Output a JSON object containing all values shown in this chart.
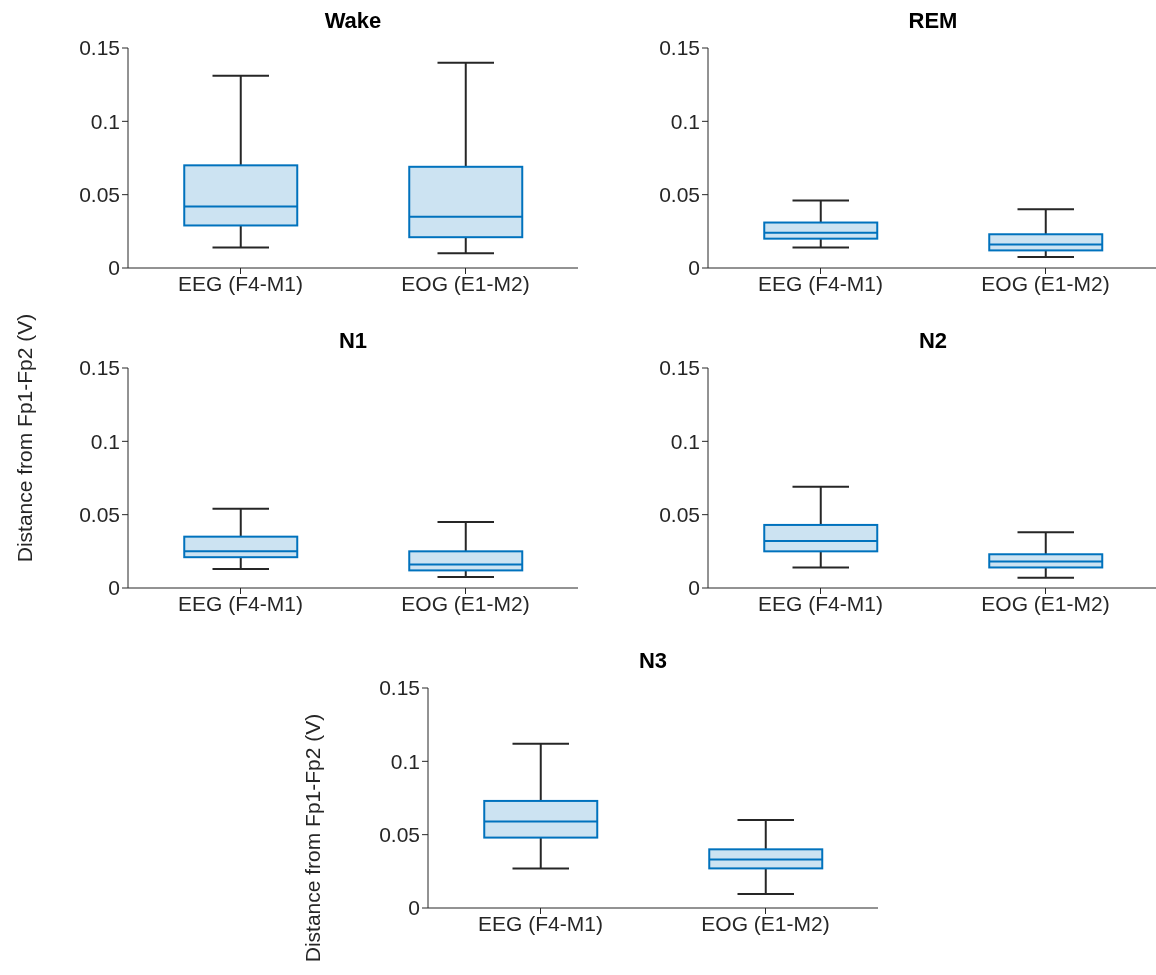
{
  "chart_data": [
    {
      "type": "box",
      "title": "Wake",
      "categories": [
        "EEG (F4-M1)",
        "EOG (E1-M2)"
      ],
      "color": "#0072bd",
      "ylim": [
        0,
        0.15
      ],
      "yticks": [
        0,
        0.05,
        0.1,
        0.15
      ],
      "grid": false,
      "boxes": [
        {
          "low": 0.014,
          "q1": 0.029,
          "median": 0.042,
          "q3": 0.07,
          "high": 0.131
        },
        {
          "low": 0.01,
          "q1": 0.021,
          "median": 0.035,
          "q3": 0.069,
          "high": 0.14
        }
      ]
    },
    {
      "type": "box",
      "title": "REM",
      "categories": [
        "EEG (F4-M1)",
        "EOG (E1-M2)"
      ],
      "color": "#0072bd",
      "ylim": [
        0,
        0.15
      ],
      "yticks": [
        0,
        0.05,
        0.1,
        0.15
      ],
      "grid": false,
      "boxes": [
        {
          "low": 0.014,
          "q1": 0.02,
          "median": 0.024,
          "q3": 0.031,
          "high": 0.046
        },
        {
          "low": 0.0075,
          "q1": 0.012,
          "median": 0.016,
          "q3": 0.023,
          "high": 0.04
        }
      ]
    },
    {
      "type": "box",
      "title": "N1",
      "ylabel": "Distance from Fp1-Fp2 (V)",
      "categories": [
        "EEG (F4-M1)",
        "EOG (E1-M2)"
      ],
      "color": "#0072bd",
      "ylim": [
        0,
        0.15
      ],
      "yticks": [
        0,
        0.05,
        0.1,
        0.15
      ],
      "grid": false,
      "boxes": [
        {
          "low": 0.013,
          "q1": 0.021,
          "median": 0.025,
          "q3": 0.035,
          "high": 0.054
        },
        {
          "low": 0.0075,
          "q1": 0.012,
          "median": 0.016,
          "q3": 0.025,
          "high": 0.045
        }
      ]
    },
    {
      "type": "box",
      "title": "N2",
      "categories": [
        "EEG (F4-M1)",
        "EOG (E1-M2)"
      ],
      "color": "#0072bd",
      "ylim": [
        0,
        0.15
      ],
      "yticks": [
        0,
        0.05,
        0.1,
        0.15
      ],
      "grid": false,
      "boxes": [
        {
          "low": 0.014,
          "q1": 0.025,
          "median": 0.032,
          "q3": 0.043,
          "high": 0.069
        },
        {
          "low": 0.007,
          "q1": 0.014,
          "median": 0.018,
          "q3": 0.023,
          "high": 0.038
        }
      ]
    },
    {
      "type": "box",
      "title": "N3",
      "ylabel": "Distance from Fp1-Fp2 (V)",
      "categories": [
        "EEG (F4-M1)",
        "EOG (E1-M2)"
      ],
      "color": "#0072bd",
      "ylim": [
        0,
        0.15
      ],
      "yticks": [
        0,
        0.05,
        0.1,
        0.15
      ],
      "grid": false,
      "boxes": [
        {
          "low": 0.027,
          "q1": 0.048,
          "median": 0.059,
          "q3": 0.073,
          "high": 0.112
        },
        {
          "low": 0.0095,
          "q1": 0.027,
          "median": 0.033,
          "q3": 0.04,
          "high": 0.06
        }
      ]
    }
  ]
}
